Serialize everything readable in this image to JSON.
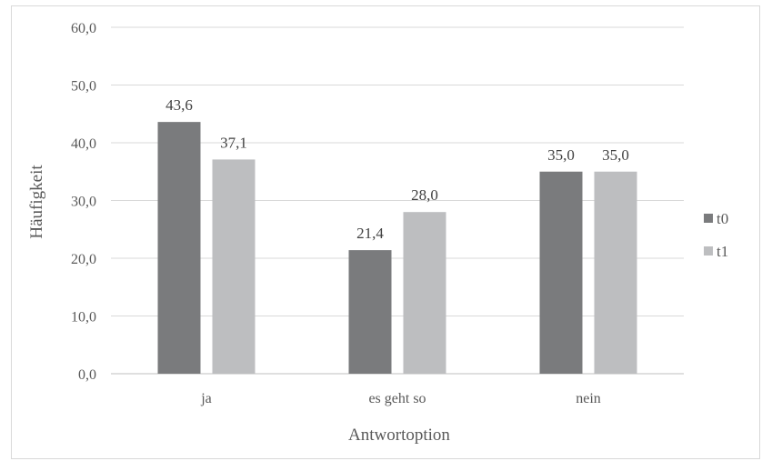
{
  "chart_data": {
    "type": "bar",
    "categories": [
      "ja",
      "es geht so",
      "nein"
    ],
    "series": [
      {
        "name": "t0",
        "values": [
          43.6,
          21.4,
          35.0
        ],
        "labels": [
          "43,6",
          "21,4",
          "35,0"
        ],
        "color": "#7a7b7d"
      },
      {
        "name": "t1",
        "values": [
          37.1,
          28.0,
          35.0
        ],
        "labels": [
          "37,1",
          "28,0",
          "35,0"
        ],
        "color": "#bdbec0"
      }
    ],
    "y_ticks": [
      0,
      10,
      20,
      30,
      40,
      50,
      60
    ],
    "y_tick_labels": [
      "0,0",
      "10,0",
      "20,0",
      "30,0",
      "40,0",
      "50,0",
      "60,0"
    ],
    "ylim": [
      0,
      60
    ],
    "xlabel": "Antwortoption",
    "ylabel": "Häufigkeit",
    "grid": true,
    "legend_position": "right"
  }
}
